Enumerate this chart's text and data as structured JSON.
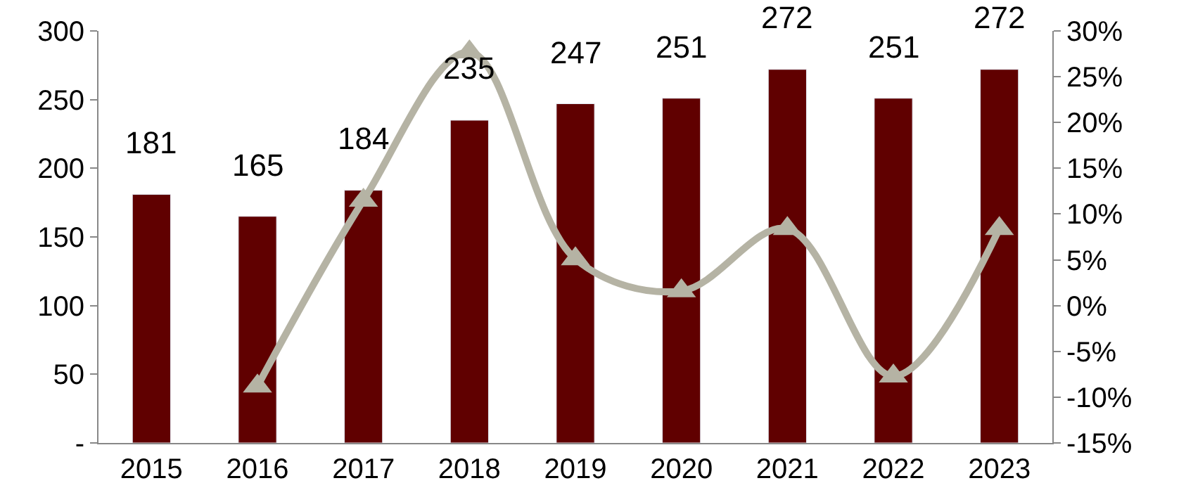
{
  "chart_data": {
    "type": "bar",
    "categories": [
      "2015",
      "2016",
      "2017",
      "2018",
      "2019",
      "2020",
      "2021",
      "2022",
      "2023"
    ],
    "series": [
      {
        "color": "#600000",
        "values": [
          181,
          165,
          184,
          235,
          247,
          251,
          272,
          251,
          272
        ],
        "value_labels": [
          "181",
          "165",
          "184",
          "235",
          "247",
          "251",
          "272",
          "251",
          "272"
        ]
      },
      {
        "type": "line",
        "axis": "y2",
        "color": "#b5b3a4",
        "marker": "triangle",
        "values": [
          null,
          -8.8,
          11.5,
          27.7,
          5.1,
          1.6,
          8.4,
          -7.7,
          8.4
        ]
      }
    ],
    "ylim": [
      0,
      300
    ],
    "yticks": [
      {
        "value": 0,
        "label": "-"
      },
      50,
      100,
      150,
      200,
      250,
      300
    ],
    "y2lim": [
      -15,
      30
    ],
    "y2ticks": [
      {
        "value": -15,
        "label": "-15%"
      },
      {
        "value": -10,
        "label": "-10%"
      },
      {
        "value": -5,
        "label": "-5%"
      },
      {
        "value": 0,
        "label": "0%"
      },
      {
        "value": 5,
        "label": "5%"
      },
      {
        "value": 10,
        "label": "10%"
      },
      {
        "value": 15,
        "label": "15%"
      },
      {
        "value": 20,
        "label": "20%"
      },
      {
        "value": 25,
        "label": "25%"
      },
      {
        "value": 30,
        "label": "30%"
      }
    ],
    "legend": false
  }
}
